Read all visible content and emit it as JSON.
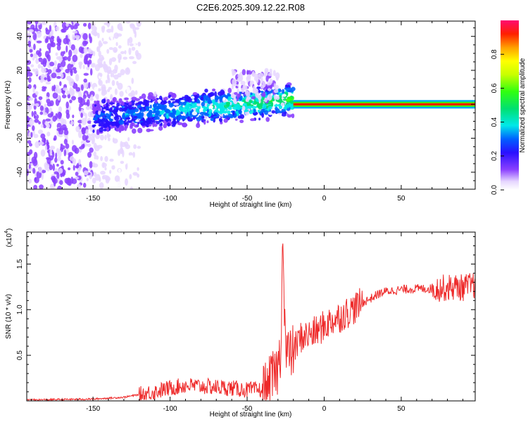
{
  "title": "C2E6.2025.309.12.22.R08",
  "chart_data": [
    {
      "type": "heatmap",
      "xlabel": "Height of straight line (km)",
      "ylabel": "Frequency (Hz)",
      "xlim": [
        -193,
        98
      ],
      "ylim": [
        -50,
        49
      ],
      "xticks": [
        -150,
        -100,
        -50,
        0,
        50
      ],
      "yticks": [
        -40,
        -20,
        0,
        20,
        40
      ],
      "colorbar": {
        "label": "Normalized spectral amplitude",
        "range": [
          0.0,
          1.0
        ],
        "ticks": [
          0.0,
          0.2,
          0.4,
          0.6,
          0.8
        ]
      },
      "features": [
        {
          "segment": "noise",
          "x_range": [
            -193,
            -120
          ],
          "freq_range": [
            -50,
            49
          ],
          "amplitude": [
            0.05,
            0.15
          ]
        },
        {
          "segment": "scattered",
          "x_range": [
            -150,
            -20
          ],
          "freq_center_start": -8,
          "freq_center_end": 3,
          "amplitude": [
            0.1,
            0.5
          ]
        },
        {
          "segment": "tone",
          "x_range": [
            -20,
            98
          ],
          "freq": 0,
          "amplitude": 0.95
        }
      ]
    },
    {
      "type": "line",
      "xlabel": "Height of straight line (km)",
      "ylabel": "SNR (10 * v/v)",
      "yscale_label": "(x10",
      "yscale_exp": "4",
      "xlim": [
        -193,
        98
      ],
      "ylim": [
        0,
        1.85
      ],
      "xticks": [
        -150,
        -100,
        -50,
        0,
        50
      ],
      "yticks": [
        0.5,
        1.0,
        1.5
      ],
      "series": [
        {
          "name": "SNR",
          "color": "#ee2a2a",
          "x": [
            -193,
            -150,
            -130,
            -120,
            -110,
            -100,
            -90,
            -80,
            -70,
            -60,
            -50,
            -40,
            -35,
            -30,
            -28,
            -27,
            -25,
            -22,
            -20,
            -15,
            -10,
            -5,
            0,
            5,
            10,
            15,
            20,
            25,
            30,
            35,
            40,
            50,
            60,
            70,
            80,
            85,
            90,
            95,
            98
          ],
          "y": [
            0.01,
            0.02,
            0.04,
            0.07,
            0.1,
            0.14,
            0.17,
            0.16,
            0.15,
            0.14,
            0.12,
            0.12,
            0.2,
            0.35,
            0.6,
            1.85,
            0.55,
            0.5,
            0.55,
            0.7,
            0.72,
            0.76,
            0.82,
            0.88,
            0.92,
            0.97,
            1.02,
            1.08,
            1.12,
            1.17,
            1.2,
            1.22,
            1.23,
            1.23,
            1.24,
            1.25,
            1.24,
            1.26,
            1.27
          ]
        }
      ]
    }
  ]
}
